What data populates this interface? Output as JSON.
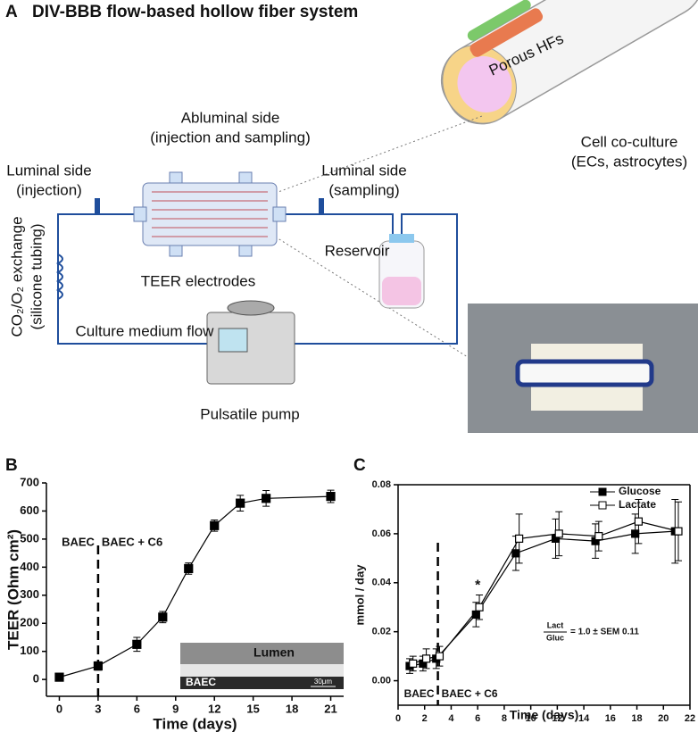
{
  "figure": {
    "panel_a": {
      "letter": "A",
      "title": "DIV-BBB flow-based hollow fiber system",
      "labels": {
        "porous": "Porous HFs",
        "abluminal": "Abluminal side",
        "abluminal_sub": "(injection and sampling)",
        "luminal_in": "Luminal side",
        "luminal_in_sub": "(injection)",
        "luminal_out": "Luminal side",
        "luminal_out_sub": "(sampling)",
        "coculture": "Cell co-culture",
        "coculture_sub": "(ECs, astrocytes)",
        "gas": "CO₂/O₂ exchange",
        "gas_sub": "(silicone tubing)",
        "reservoir": "Reservoir",
        "electrodes": "TEER electrodes",
        "flow": "Culture medium flow",
        "pump": "Pulsatile pump"
      }
    },
    "panel_b": {
      "letter": "B"
    },
    "panel_c": {
      "letter": "C"
    }
  },
  "chart_data": [
    {
      "type": "line",
      "xlabel": "Time (days)",
      "ylabel": "TEER (Ohm cm²)",
      "x": [
        0,
        3,
        6,
        8,
        10,
        12,
        14,
        16,
        21
      ],
      "values": [
        8,
        48,
        125,
        222,
        395,
        548,
        628,
        645,
        652
      ],
      "errors": [
        5,
        15,
        25,
        20,
        20,
        20,
        28,
        28,
        22
      ],
      "color": "#000000",
      "marker": "filled-square",
      "xlim": [
        -1,
        22
      ],
      "xticks": [
        0,
        3,
        6,
        9,
        12,
        15,
        18,
        21
      ],
      "ylim": [
        -60,
        700
      ],
      "yticks": [
        0,
        100,
        200,
        300,
        400,
        500,
        600,
        700
      ],
      "vline": 3,
      "annotations": {
        "left_phase": "BAEC",
        "right_phase": "BAEC + C6",
        "inset_top": "Lumen",
        "inset_bottom": "BAEC",
        "scale_bar": "30μm"
      }
    },
    {
      "type": "line",
      "xlabel": "Time (days)",
      "ylabel": "mmol / day",
      "x": [
        1,
        2,
        3,
        6,
        9,
        12,
        15,
        18,
        21
      ],
      "series": [
        {
          "name": "Glucose",
          "color": "#000000",
          "marker": "filled-square",
          "values": [
            0.006,
            0.007,
            0.009,
            0.027,
            0.052,
            0.058,
            0.057,
            0.06,
            0.061
          ],
          "errors": [
            0.003,
            0.003,
            0.004,
            0.005,
            0.007,
            0.008,
            0.007,
            0.008,
            0.013
          ]
        },
        {
          "name": "Lactate",
          "color": "#000000",
          "marker": "open-square",
          "values": [
            0.007,
            0.009,
            0.01,
            0.03,
            0.058,
            0.06,
            0.059,
            0.065,
            0.061
          ],
          "errors": [
            0.003,
            0.004,
            0.004,
            0.005,
            0.01,
            0.009,
            0.006,
            0.009,
            0.012
          ]
        }
      ],
      "xlim": [
        0,
        22
      ],
      "xticks": [
        0,
        2,
        4,
        6,
        8,
        10,
        12,
        14,
        16,
        18,
        20,
        22
      ],
      "ylim": [
        -0.01,
        0.08
      ],
      "yticks": [
        {
          "value": 0,
          "label": "0.00"
        },
        {
          "value": 0.02,
          "label": "0.02"
        },
        {
          "value": 0.04,
          "label": "0.04"
        },
        {
          "value": 0.06,
          "label": "0.06"
        },
        {
          "value": 0.08,
          "label": "0.08"
        }
      ],
      "vline": 3,
      "frame": true,
      "legend": "top-right",
      "annotations": {
        "left_phase": "BAEC",
        "right_phase": "BAEC + C6",
        "star": "*",
        "ratio_num": "Lact",
        "ratio_den": "Gluc",
        "ratio_value": "= 1.0 ± SEM 0.11"
      }
    }
  ]
}
